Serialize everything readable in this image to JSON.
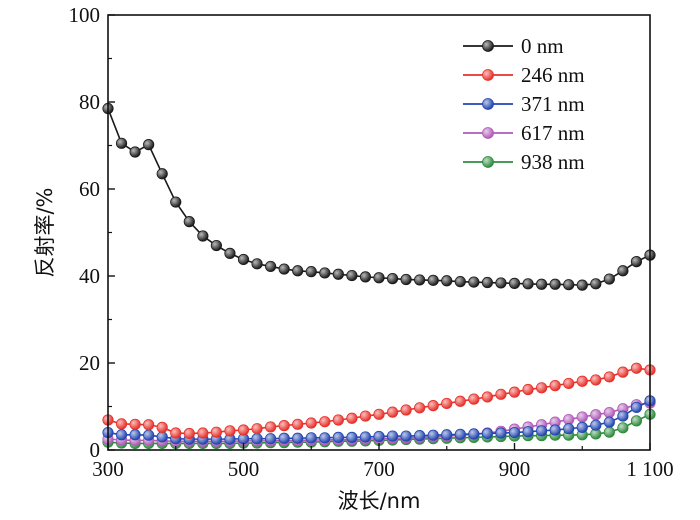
{
  "chart_data": {
    "type": "line",
    "xlabel": "波长/nm",
    "ylabel": "反射率/%",
    "xlim": [
      300,
      1100
    ],
    "ylim": [
      0,
      100
    ],
    "x_ticks": [
      300,
      500,
      700,
      900,
      1100
    ],
    "x_tick_labels": [
      "300",
      "500",
      "700",
      "900",
      "1 100"
    ],
    "y_ticks": [
      0,
      20,
      40,
      60,
      80,
      100
    ],
    "y_tick_labels": [
      "0",
      "20",
      "40",
      "60",
      "80",
      "100"
    ],
    "grid": false,
    "legend_position": "top-right",
    "x": [
      300,
      320,
      340,
      360,
      380,
      400,
      420,
      440,
      460,
      480,
      500,
      520,
      540,
      560,
      580,
      600,
      620,
      640,
      660,
      680,
      700,
      720,
      740,
      760,
      780,
      800,
      820,
      840,
      860,
      880,
      900,
      920,
      940,
      960,
      980,
      1000,
      1020,
      1040,
      1060,
      1080,
      1100
    ],
    "series": [
      {
        "name": "0 nm",
        "color": "#1a1a1a",
        "values": [
          78.5,
          70.5,
          68.5,
          70.2,
          63.5,
          57,
          52.5,
          49.2,
          47,
          45.2,
          43.8,
          42.8,
          42.2,
          41.6,
          41.2,
          41,
          40.7,
          40.4,
          40.1,
          39.8,
          39.6,
          39.4,
          39.2,
          39.1,
          39,
          38.9,
          38.7,
          38.6,
          38.5,
          38.4,
          38.3,
          38.2,
          38.1,
          38.1,
          38,
          37.9,
          38.2,
          39.3,
          41.2,
          43.3,
          44.8
        ]
      },
      {
        "name": "246 nm",
        "color": "#e8302a",
        "values": [
          6.9,
          6.0,
          5.9,
          5.8,
          5.2,
          3.9,
          3.8,
          3.9,
          4.1,
          4.4,
          4.6,
          4.9,
          5.3,
          5.6,
          5.9,
          6.2,
          6.5,
          6.9,
          7.3,
          7.8,
          8.2,
          8.7,
          9.2,
          9.7,
          10.2,
          10.7,
          11.2,
          11.7,
          12.2,
          12.8,
          13.3,
          13.9,
          14.3,
          14.8,
          15.3,
          15.8,
          16.1,
          16.8,
          17.9,
          18.8,
          18.4
        ]
      },
      {
        "name": "371 nm",
        "color": "#2346b0",
        "values": [
          4.0,
          3.5,
          3.5,
          3.4,
          3.0,
          2.6,
          2.5,
          2.5,
          2.5,
          2.5,
          2.6,
          2.6,
          2.6,
          2.7,
          2.7,
          2.8,
          2.8,
          2.9,
          2.9,
          3.0,
          3.1,
          3.2,
          3.2,
          3.3,
          3.4,
          3.5,
          3.6,
          3.7,
          3.8,
          3.9,
          4.0,
          4.2,
          4.4,
          4.6,
          4.9,
          5.2,
          5.7,
          6.4,
          7.8,
          9.8,
          11.3
        ]
      },
      {
        "name": "617 nm",
        "color": "#b05ab8",
        "values": [
          2.5,
          2.3,
          2.2,
          2.2,
          2.1,
          2.0,
          2.0,
          2.0,
          2.0,
          2.0,
          2.1,
          2.1,
          2.1,
          2.2,
          2.2,
          2.3,
          2.3,
          2.4,
          2.4,
          2.5,
          2.6,
          2.7,
          2.8,
          2.9,
          3.0,
          3.2,
          3.4,
          3.6,
          3.9,
          4.3,
          4.8,
          5.3,
          5.8,
          6.4,
          7.0,
          7.6,
          8.1,
          8.6,
          9.5,
          10.4,
          10.8
        ]
      },
      {
        "name": "938 nm",
        "color": "#2e8b3e",
        "values": [
          1.8,
          1.6,
          1.5,
          1.5,
          1.5,
          1.5,
          1.5,
          1.5,
          1.5,
          1.5,
          1.6,
          1.6,
          1.7,
          1.7,
          1.8,
          1.8,
          1.9,
          2.0,
          2.0,
          2.1,
          2.2,
          2.3,
          2.4,
          2.5,
          2.6,
          2.7,
          2.8,
          2.9,
          3.0,
          3.1,
          3.2,
          3.3,
          3.3,
          3.4,
          3.4,
          3.5,
          3.7,
          4.1,
          5.1,
          6.7,
          8.2
        ]
      }
    ]
  }
}
